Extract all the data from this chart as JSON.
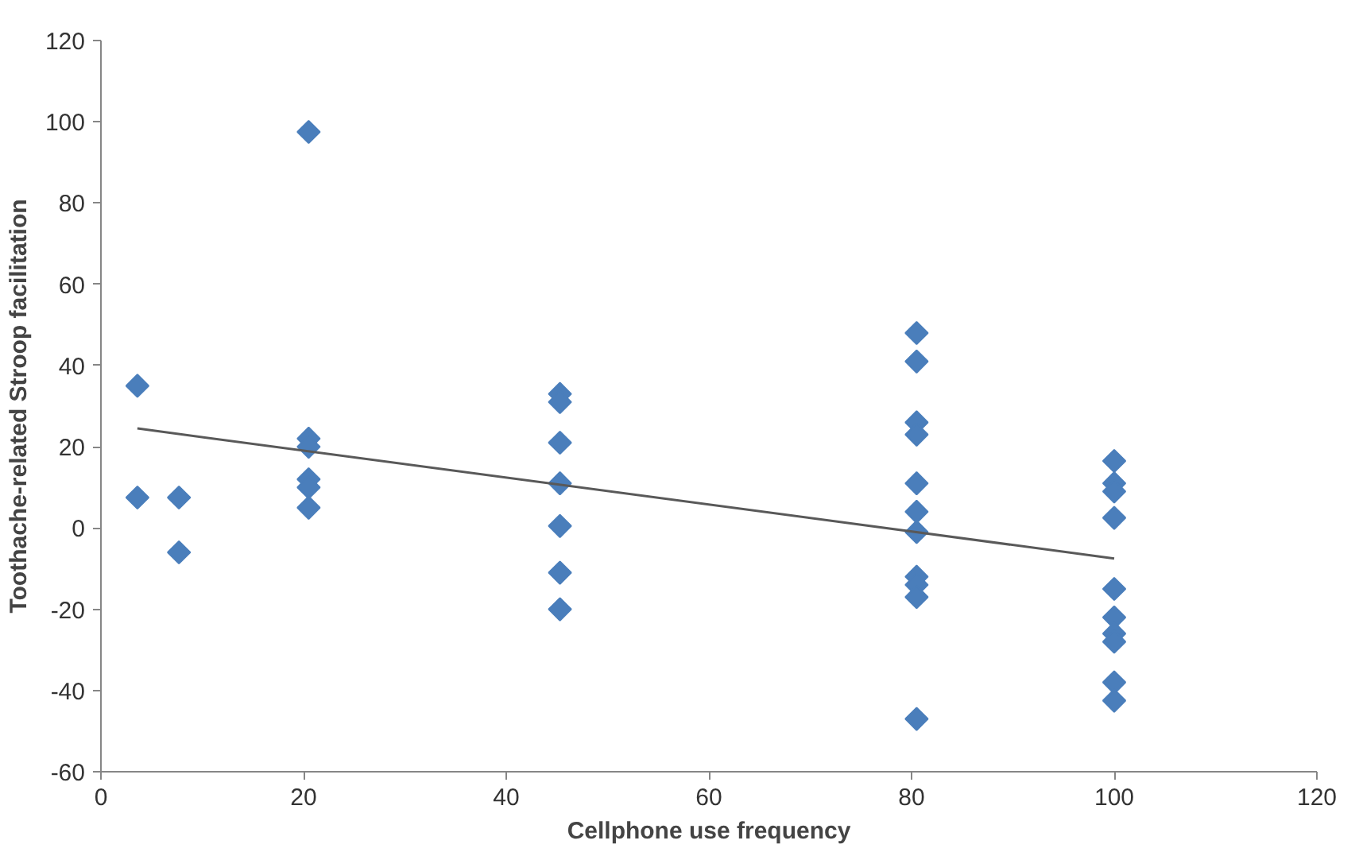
{
  "chart_data": {
    "type": "scatter",
    "xlabel": "Cellphone use frequency",
    "ylabel": "Toothache-related Stroop facilitation",
    "xlim": [
      0,
      120
    ],
    "ylim": [
      -60,
      120
    ],
    "xticks": [
      0,
      20,
      40,
      60,
      80,
      100,
      120
    ],
    "yticks": [
      -60,
      -40,
      -20,
      0,
      20,
      40,
      60,
      80,
      100,
      120
    ],
    "grid": false,
    "marker": "diamond",
    "series": [
      {
        "color": "#4a7ebb",
        "x": [
          3.6,
          3.6,
          7.7,
          7.7,
          20.5,
          20.5,
          20.5,
          20.5,
          20.5,
          20.5,
          45.3,
          45.3,
          45.3,
          45.3,
          45.3,
          45.3,
          45.3,
          80.5,
          80.5,
          80.5,
          80.5,
          80.5,
          80.5,
          80.5,
          80.5,
          80.5,
          80.5,
          80.5,
          100,
          100,
          100,
          100,
          100,
          100,
          100,
          100,
          100,
          100
        ],
        "values": [
          35,
          7.5,
          7.5,
          -6,
          97.5,
          22,
          20,
          12,
          10,
          5,
          33,
          31,
          21,
          11,
          0.5,
          -11,
          -20,
          48,
          41,
          26,
          23,
          11,
          4,
          -1,
          -12,
          -14,
          -17,
          -47,
          16.5,
          11,
          9,
          2.5,
          -15,
          -22,
          -26,
          -28,
          -38,
          -42.5
        ]
      },
      {
        "type": "line",
        "color": "#595959",
        "marker": "none",
        "x": [
          3.6,
          100
        ],
        "values": [
          24.5,
          -7.5
        ]
      }
    ]
  }
}
